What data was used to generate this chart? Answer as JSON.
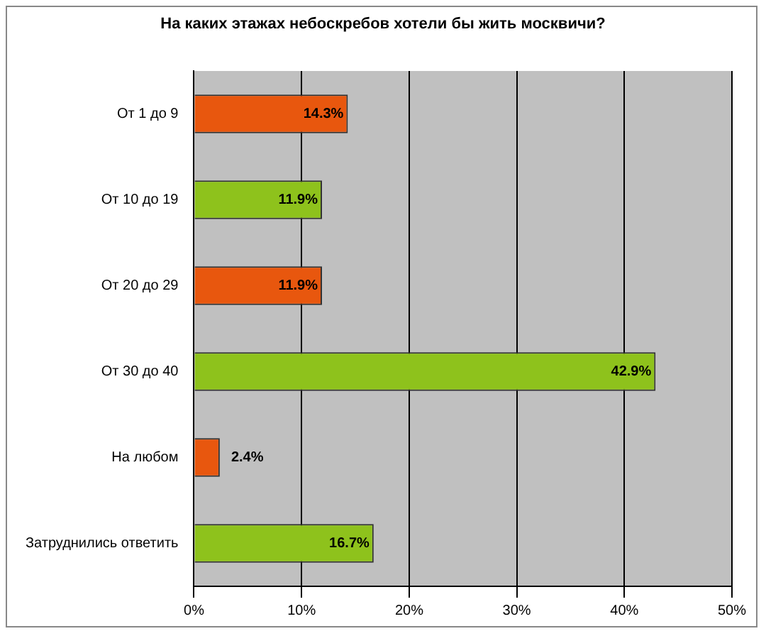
{
  "chart_data": {
    "type": "bar",
    "orientation": "horizontal",
    "title": "На каких этажах небоскребов хотели бы жить москвичи?",
    "categories": [
      "От 1 до 9",
      "От 10 до 19",
      "От 20 до 29",
      "От 30 до 40",
      "На любом",
      "Затруднились ответить"
    ],
    "values": [
      14.3,
      11.9,
      11.9,
      42.9,
      2.4,
      16.7
    ],
    "colors": [
      "#e8570e",
      "#8ec21c",
      "#e8570e",
      "#8ec21c",
      "#e8570e",
      "#8ec21c"
    ],
    "value_labels": [
      "14.3%",
      "11.9%",
      "11.9%",
      "42.9%",
      "2.4%",
      "16.7%"
    ],
    "xlim": [
      0,
      50
    ],
    "xticks": [
      {
        "value": 0,
        "label": "0%"
      },
      {
        "value": 10,
        "label": "10%"
      },
      {
        "value": 20,
        "label": "20%"
      },
      {
        "value": 30,
        "label": "30%"
      },
      {
        "value": 40,
        "label": "40%"
      },
      {
        "value": 50,
        "label": "50%"
      }
    ],
    "grid": "x",
    "legend": false
  }
}
